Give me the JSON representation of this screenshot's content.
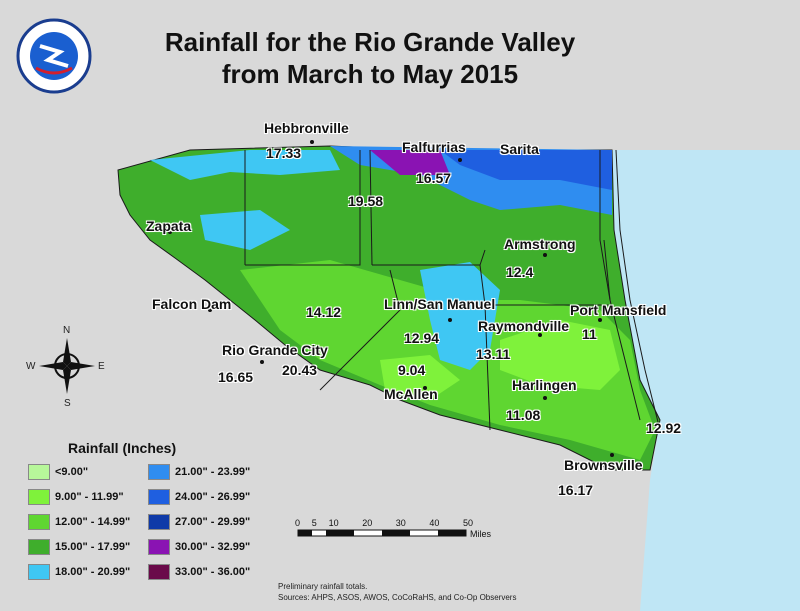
{
  "title_line1": "Rainfall for the Rio Grande Valley",
  "title_line2": "from March to May 2015",
  "logo_text": "NATIONAL WEATHER SERVICE",
  "cities": {
    "hebbronville": "Hebbronville",
    "falfurrias": "Falfurrias",
    "sarita": "Sarita",
    "zapata": "Zapata",
    "armstrong": "Armstrong",
    "falcon_dam": "Falcon Dam",
    "linn_san_manuel": "Linn/San Manuel",
    "port_mansfield": "Port Mansfield",
    "raymondville": "Raymondville",
    "rio_grande_city": "Rio Grande City",
    "mcallen": "McAllen",
    "harlingen": "Harlingen",
    "brownsville": "Brownsville"
  },
  "values": {
    "hebbronville": "17.33",
    "falfurrias": "16.57",
    "center_north": "19.58",
    "armstrong": "12.4",
    "falcon_area": "14.12",
    "linn": "12.94",
    "port_mansfield": "11",
    "raymondville": "13.11",
    "rio_grande_city_w": "16.65",
    "rio_grande_city_e": "20.43",
    "mcallen": "9.04",
    "harlingen": "11.08",
    "coast_south": "12.92",
    "brownsville": "16.17"
  },
  "compass": {
    "n": "N",
    "s": "S",
    "e": "E",
    "w": "W"
  },
  "legend": {
    "title": "Rainfall (Inches)",
    "items": [
      {
        "label": "<9.00\"",
        "color": "#b7f79a"
      },
      {
        "label": "9.00\" - 11.99\"",
        "color": "#7ff23b"
      },
      {
        "label": "12.00\" - 14.99\"",
        "color": "#5fd631"
      },
      {
        "label": "15.00\" - 17.99\"",
        "color": "#3fae2c"
      },
      {
        "label": "18.00\" - 20.99\"",
        "color": "#3fc7f3"
      },
      {
        "label": "21.00\" - 23.99\"",
        "color": "#2f8df0"
      },
      {
        "label": "24.00\" - 26.99\"",
        "color": "#1f5fe0"
      },
      {
        "label": "27.00\" - 29.99\"",
        "color": "#0f3aa8"
      },
      {
        "label": "30.00\" - 32.99\"",
        "color": "#8a13b3"
      },
      {
        "label": "33.00\" - 36.00\"",
        "color": "#6a0a4a"
      }
    ]
  },
  "scale": {
    "ticks": [
      "0",
      "5",
      "10",
      "20",
      "30",
      "40",
      "50"
    ],
    "unit": "Miles"
  },
  "footer": {
    "line1": "Preliminary rainfall totals.",
    "line2": "Sources: AHPS, ASOS, AWOS, CoCoRaHS, and Co-Op Observers"
  }
}
